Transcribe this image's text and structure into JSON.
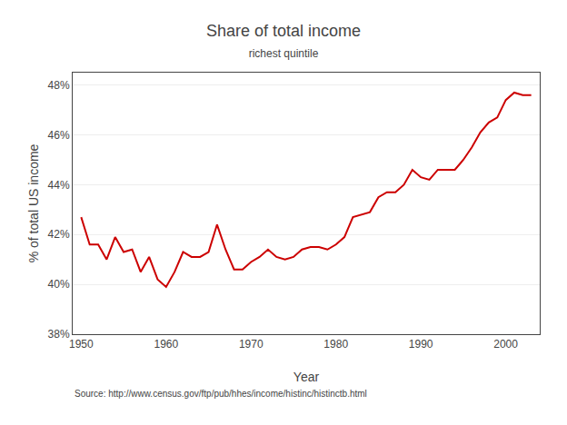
{
  "chart_data": {
    "type": "line",
    "title": "Share of total income",
    "subtitle": "richest quintile",
    "xlabel": "Year",
    "ylabel": "% of total US income",
    "annotations": [
      "Source: http://www.census.gov/ftp/pub/hhes/income/histinc/histinctb.html"
    ],
    "color": "#cc0000",
    "grid": "y",
    "xlim": [
      1949,
      2004
    ],
    "xticks": [
      1950,
      1960,
      1970,
      1980,
      1990,
      2000
    ],
    "ylim": [
      38,
      48.5
    ],
    "yticks": [
      {
        "value": 38,
        "label": "38%"
      },
      {
        "value": 40,
        "label": "40%"
      },
      {
        "value": 42,
        "label": "42%"
      },
      {
        "value": 44,
        "label": "44%"
      },
      {
        "value": 46,
        "label": "46%"
      },
      {
        "value": 48,
        "label": "48%"
      }
    ],
    "x": [
      1950,
      1951,
      1952,
      1953,
      1954,
      1955,
      1956,
      1957,
      1958,
      1959,
      1960,
      1961,
      1962,
      1963,
      1964,
      1965,
      1966,
      1967,
      1968,
      1969,
      1970,
      1971,
      1972,
      1973,
      1974,
      1975,
      1976,
      1977,
      1978,
      1979,
      1980,
      1981,
      1982,
      1983,
      1984,
      1985,
      1986,
      1987,
      1988,
      1989,
      1990,
      1991,
      1992,
      1993,
      1994,
      1995,
      1996,
      1997,
      1998,
      1999,
      2000,
      2001,
      2002,
      2003
    ],
    "values": [
      42.7,
      41.6,
      41.6,
      41.0,
      41.9,
      41.3,
      41.4,
      40.5,
      41.1,
      40.2,
      39.9,
      40.5,
      41.3,
      41.1,
      41.1,
      41.3,
      42.4,
      41.4,
      40.6,
      40.6,
      40.9,
      41.1,
      41.4,
      41.1,
      41.0,
      41.1,
      41.4,
      41.5,
      41.5,
      41.4,
      41.6,
      41.9,
      42.7,
      42.8,
      42.9,
      43.5,
      43.7,
      43.7,
      44.0,
      44.6,
      44.3,
      44.2,
      44.6,
      44.6,
      44.6,
      45.0,
      45.5,
      46.1,
      46.5,
      46.7,
      47.4,
      47.7,
      47.6,
      47.6
    ]
  }
}
